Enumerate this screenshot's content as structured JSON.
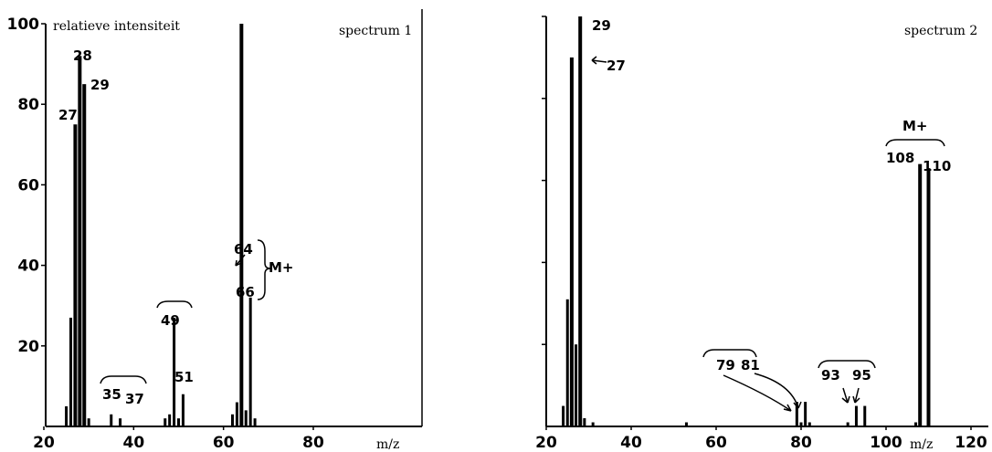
{
  "chart_data": [
    {
      "type": "bar",
      "title": "spectrum 1",
      "xlabel": "m/z",
      "ylabel": "relatieve intensiteit",
      "xlim": [
        20,
        80
      ],
      "ylim": [
        0,
        100
      ],
      "xticks": [
        "20",
        "40",
        "60",
        "80"
      ],
      "yticks": [
        "100",
        "80",
        "60",
        "40",
        "20"
      ],
      "x": [
        25,
        26,
        27,
        28,
        29,
        30,
        35,
        37,
        47,
        48,
        49,
        50,
        51,
        62,
        63,
        64,
        65,
        66,
        67
      ],
      "values": [
        5,
        27,
        75,
        92,
        85,
        2,
        3,
        2,
        2,
        3,
        27,
        2,
        8,
        3,
        6,
        100,
        4,
        32,
        2
      ],
      "annotations": [
        "28",
        "27",
        "29",
        "35",
        "37",
        "49",
        "51",
        "64",
        "66",
        "M+"
      ]
    },
    {
      "type": "bar",
      "title": "spectrum 2",
      "xlabel": "m/z",
      "ylabel": "",
      "xlim": [
        20,
        120
      ],
      "ylim": [
        0,
        100
      ],
      "xticks": [
        "20",
        "40",
        "60",
        "80",
        "100",
        "120"
      ],
      "x": [
        24,
        25,
        26,
        27,
        28,
        29,
        31,
        53,
        79,
        80,
        81,
        82,
        91,
        93,
        95,
        107,
        108,
        110
      ],
      "values": [
        5,
        31,
        90,
        20,
        100,
        2,
        1,
        1,
        6,
        1,
        6,
        1,
        1,
        5,
        5,
        1,
        64,
        63
      ],
      "annotations": [
        "29",
        "27",
        "M+",
        "108",
        "110",
        "79",
        "81",
        "93",
        "95"
      ]
    }
  ]
}
